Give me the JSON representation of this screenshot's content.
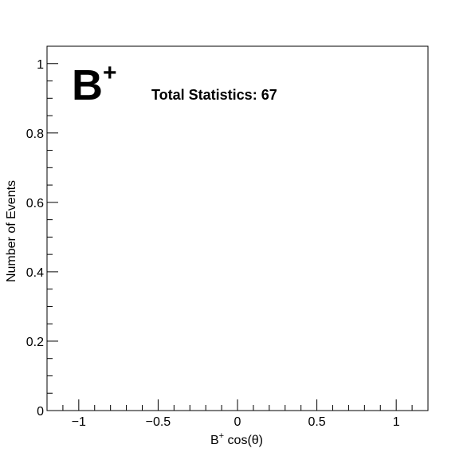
{
  "chart_data": {
    "type": "bar",
    "title": "",
    "xlabel": {
      "base": "B",
      "sup": "+",
      "rest": " cos(θ)"
    },
    "ylabel": "Number of Events",
    "xlim": [
      -1.2,
      1.2
    ],
    "ylim": [
      0,
      1.05
    ],
    "x_major_ticks": [
      -1,
      -0.5,
      0,
      0.5,
      1
    ],
    "x_tick_labels": [
      "−1",
      "−0.5",
      "0",
      "0.5",
      "1"
    ],
    "x_minor_step": 0.1,
    "y_major_ticks": [
      0,
      0.2,
      0.4,
      0.6,
      0.8,
      1
    ],
    "y_tick_labels": [
      "0",
      "0.2",
      "0.4",
      "0.6",
      "0.8",
      "1"
    ],
    "y_minor_step": 0.05,
    "series": [],
    "grid": false,
    "annotations": {
      "particle_label": {
        "base": "B",
        "sup": "+"
      },
      "stats_text": "Total Statistics: 67"
    }
  }
}
